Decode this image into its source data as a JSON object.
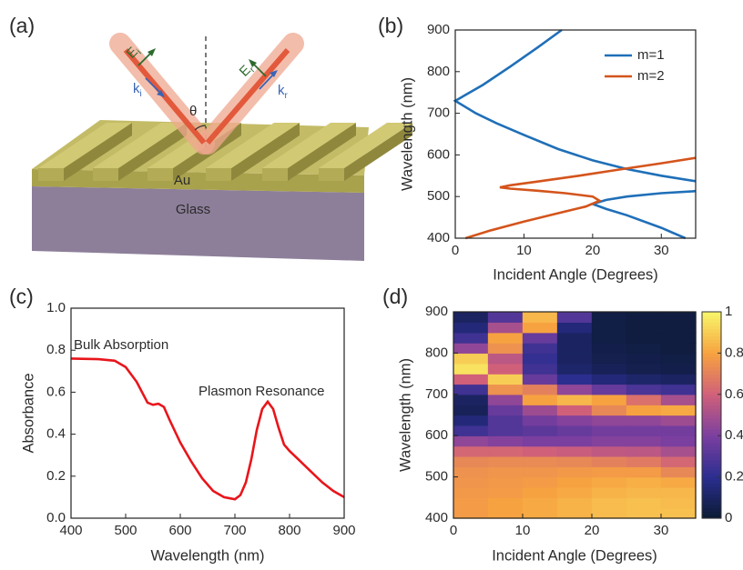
{
  "diagram": {
    "panel_label": "(a)",
    "incident": {
      "E": [
        "E",
        "i"
      ],
      "k": [
        "k",
        "i"
      ]
    },
    "reflected": {
      "E": [
        "E",
        "r"
      ],
      "k": [
        "k",
        "r"
      ]
    },
    "angle": "θ",
    "metal": "Au",
    "substrate": "Glass"
  },
  "chart_data": [
    {
      "type": "line",
      "panel_label": "(b)",
      "xlabel": "Incident Angle (Degrees)",
      "ylabel": "Wavelength (nm)",
      "xlim": [
        0,
        35
      ],
      "ylim": [
        400,
        900
      ],
      "xticks": [
        0,
        10,
        20,
        30
      ],
      "yticks": [
        400,
        500,
        600,
        700,
        800,
        900
      ],
      "legend": "upper right",
      "series": [
        {
          "name": "m=1",
          "color": "#1f6fb8",
          "x": [
            15.5,
            12,
            8,
            4,
            0,
            3,
            6,
            10,
            15,
            20,
            25,
            30,
            35,
            null,
            35,
            30,
            25,
            22,
            20,
            22,
            25,
            30,
            33.5
          ],
          "values": [
            900,
            858,
            812,
            768,
            730,
            700,
            676,
            648,
            614,
            587,
            566,
            550,
            537,
            null,
            513,
            508,
            500,
            492,
            482,
            470,
            455,
            425,
            400
          ]
        },
        {
          "name": "m=2",
          "color": "#d4541c",
          "x": [
            1.5,
            5,
            10,
            15,
            19,
            21,
            20,
            16,
            12,
            8,
            6.5,
            8,
            12,
            18,
            24,
            30,
            35
          ],
          "values": [
            400,
            418,
            440,
            460,
            476,
            490,
            500,
            508,
            514,
            519,
            522,
            527,
            536,
            550,
            565,
            580,
            593
          ]
        }
      ]
    },
    {
      "type": "line",
      "panel_label": "(c)",
      "xlabel": "Wavelength (nm)",
      "ylabel": "Absorbance",
      "xlim": [
        400,
        900
      ],
      "ylim": [
        0,
        1
      ],
      "xticks": [
        400,
        500,
        600,
        700,
        800,
        900
      ],
      "yticks": [
        {
          "value": 0,
          "label": "0.0"
        },
        0.2,
        0.4,
        0.6,
        0.8,
        {
          "value": 1,
          "label": "1.0"
        }
      ],
      "annotations": [
        "Bulk Absorption",
        "Plasmon Resonance"
      ],
      "color": "#e8151b",
      "x": [
        400,
        450,
        480,
        500,
        520,
        540,
        550,
        560,
        570,
        580,
        600,
        620,
        640,
        660,
        680,
        700,
        710,
        720,
        730,
        740,
        750,
        760,
        770,
        780,
        790,
        800,
        820,
        840,
        860,
        880,
        900
      ],
      "values": [
        0.76,
        0.757,
        0.75,
        0.72,
        0.65,
        0.55,
        0.54,
        0.545,
        0.53,
        0.47,
        0.36,
        0.27,
        0.19,
        0.13,
        0.1,
        0.09,
        0.11,
        0.17,
        0.28,
        0.42,
        0.52,
        0.555,
        0.52,
        0.43,
        0.35,
        0.32,
        0.27,
        0.22,
        0.17,
        0.13,
        0.1
      ]
    },
    {
      "type": "heatmap",
      "panel_label": "(d)",
      "xlabel": "Incident Angle (Degrees)",
      "ylabel": "Wavelength (nm)",
      "xlim": [
        0,
        35
      ],
      "ylim": [
        400,
        900
      ],
      "xticks": [
        0,
        10,
        20,
        30
      ],
      "yticks": [
        400,
        500,
        600,
        700,
        800,
        900
      ],
      "xbins": [
        0,
        5,
        10,
        15,
        20,
        25,
        30,
        35
      ],
      "ybins": [
        400,
        425,
        450,
        475,
        500,
        525,
        550,
        575,
        600,
        625,
        650,
        675,
        700,
        725,
        750,
        775,
        800,
        825,
        850,
        875,
        900
      ],
      "z": [
        [
          0.78,
          0.8,
          0.82,
          0.84,
          0.86,
          0.87,
          0.87
        ],
        [
          0.78,
          0.8,
          0.82,
          0.84,
          0.86,
          0.87,
          0.86
        ],
        [
          0.77,
          0.78,
          0.8,
          0.82,
          0.84,
          0.85,
          0.85
        ],
        [
          0.76,
          0.77,
          0.78,
          0.8,
          0.82,
          0.83,
          0.82
        ],
        [
          0.75,
          0.76,
          0.76,
          0.77,
          0.78,
          0.78,
          0.72
        ],
        [
          0.72,
          0.73,
          0.73,
          0.72,
          0.7,
          0.68,
          0.62
        ],
        [
          0.62,
          0.62,
          0.6,
          0.58,
          0.56,
          0.55,
          0.5
        ],
        [
          0.45,
          0.42,
          0.4,
          0.4,
          0.42,
          0.42,
          0.4
        ],
        [
          0.25,
          0.3,
          0.32,
          0.35,
          0.38,
          0.38,
          0.38
        ],
        [
          0.15,
          0.3,
          0.38,
          0.42,
          0.45,
          0.45,
          0.48
        ],
        [
          0.08,
          0.35,
          0.48,
          0.6,
          0.72,
          0.8,
          0.82
        ],
        [
          0.1,
          0.45,
          0.8,
          0.85,
          0.8,
          0.65,
          0.5
        ],
        [
          0.25,
          0.75,
          0.7,
          0.45,
          0.35,
          0.28,
          0.25
        ],
        [
          0.6,
          0.9,
          0.35,
          0.2,
          0.15,
          0.12,
          0.1
        ],
        [
          0.95,
          0.6,
          0.25,
          0.12,
          0.08,
          0.06,
          0.05
        ],
        [
          0.9,
          0.55,
          0.22,
          0.1,
          0.06,
          0.05,
          0.04
        ],
        [
          0.45,
          0.75,
          0.25,
          0.1,
          0.05,
          0.04,
          0.03
        ],
        [
          0.25,
          0.8,
          0.35,
          0.1,
          0.04,
          0.03,
          0.03
        ],
        [
          0.15,
          0.5,
          0.8,
          0.15,
          0.04,
          0.03,
          0.03
        ],
        [
          0.1,
          0.3,
          0.85,
          0.3,
          0.04,
          0.03,
          0.03
        ]
      ],
      "zlim": [
        0,
        1
      ],
      "zticks": [
        0,
        0.2,
        0.4,
        0.6,
        0.8,
        1
      ],
      "colorscale": [
        "#0b1a33",
        "#2b2e8f",
        "#7b3fa0",
        "#d0607a",
        "#f7a240",
        "#f8f76a"
      ]
    }
  ]
}
